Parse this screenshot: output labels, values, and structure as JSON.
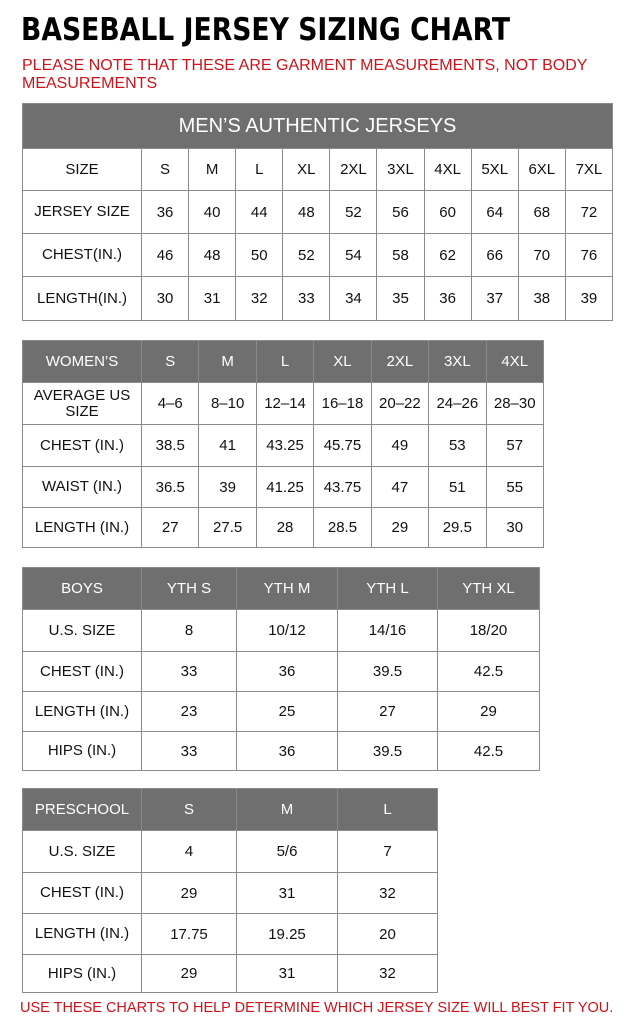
{
  "title": "BASEBALL JERSEY SIZING CHART",
  "note": "PLEASE NOTE THAT THESE ARE GARMENT MEASUREMENTS, NOT BODY MEASUREMENTS",
  "footer": "USE THESE CHARTS TO HELP DETERMINE WHICH JERSEY SIZE WILL BEST FIT YOU.",
  "colors": {
    "header_gray": "#6f6f6f",
    "note_red": "#d0121b"
  },
  "tables": [
    {
      "id": "mens",
      "banner": "MEN’S AUTHENTIC JERSEYS",
      "header_style": "plain",
      "rows": [
        [
          "SIZE",
          "S",
          "M",
          "L",
          "XL",
          "2XL",
          "3XL",
          "4XL",
          "5XL",
          "6XL",
          "7XL"
        ],
        [
          "JERSEY SIZE",
          "36",
          "40",
          "44",
          "48",
          "52",
          "56",
          "60",
          "64",
          "68",
          "72"
        ],
        [
          "CHEST(IN.)",
          "46",
          "48",
          "50",
          "52",
          "54",
          "58",
          "62",
          "66",
          "70",
          "76"
        ],
        [
          "LENGTH(IN.)",
          "30",
          "31",
          "32",
          "33",
          "34",
          "35",
          "36",
          "37",
          "38",
          "39"
        ]
      ]
    },
    {
      "id": "womens",
      "header_style": "gray",
      "rows": [
        [
          "WOMEN’S",
          "S",
          "M",
          "L",
          "XL",
          "2XL",
          "3XL",
          "4XL"
        ],
        [
          "AVERAGE US SIZE",
          "4–6",
          "8–10",
          "12–14",
          "16–18",
          "20–22",
          "24–26",
          "28–30"
        ],
        [
          "CHEST (IN.)",
          "38.5",
          "41",
          "43.25",
          "45.75",
          "49",
          "53",
          "57"
        ],
        [
          "WAIST (IN.)",
          "36.5",
          "39",
          "41.25",
          "43.75",
          "47",
          "51",
          "55"
        ],
        [
          "LENGTH (IN.)",
          "27",
          "27.5",
          "28",
          "28.5",
          "29",
          "29.5",
          "30"
        ]
      ]
    },
    {
      "id": "boys",
      "header_style": "gray",
      "rows": [
        [
          "BOYS",
          "YTH S",
          "YTH M",
          "YTH L",
          "YTH XL"
        ],
        [
          "U.S. SIZE",
          "8",
          "10/12",
          "14/16",
          "18/20"
        ],
        [
          "CHEST (IN.)",
          "33",
          "36",
          "39.5",
          "42.5"
        ],
        [
          "LENGTH (IN.)",
          "23",
          "25",
          "27",
          "29"
        ],
        [
          "HIPS (IN.)",
          "33",
          "36",
          "39.5",
          "42.5"
        ]
      ]
    },
    {
      "id": "preschool",
      "header_style": "gray",
      "rows": [
        [
          "PRESCHOOL",
          "S",
          "M",
          "L"
        ],
        [
          "U.S. SIZE",
          "4",
          "5/6",
          "7"
        ],
        [
          "CHEST (IN.)",
          "29",
          "31",
          "32"
        ],
        [
          "LENGTH (IN.)",
          "17.75",
          "19.25",
          "20"
        ],
        [
          "HIPS (IN.)",
          "29",
          "31",
          "32"
        ]
      ]
    }
  ]
}
